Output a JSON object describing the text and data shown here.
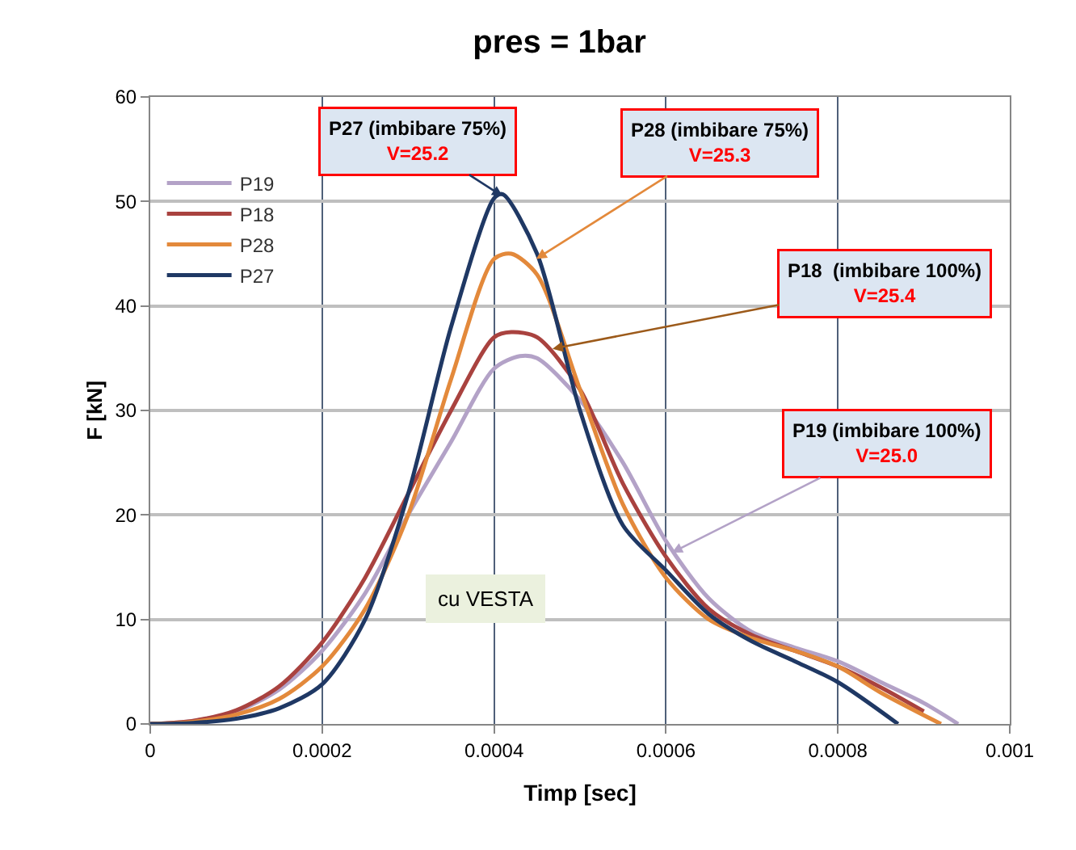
{
  "chart_data": {
    "type": "line",
    "title": "pres = 1bar",
    "xlabel": "Timp [sec]",
    "ylabel": "F [kN]",
    "xlim": [
      0,
      0.001
    ],
    "xticks": [
      0,
      0.0002,
      0.0004,
      0.0006,
      0.0008,
      0.001
    ],
    "ylim": [
      0,
      60
    ],
    "yticks": [
      0,
      10,
      20,
      30,
      40,
      50,
      60
    ],
    "grid": true,
    "legend": "top left",
    "marker": "none",
    "line_style": "solid",
    "series": [
      {
        "name": "P19",
        "color": "#b3a2c7",
        "x": [
          0,
          5e-05,
          0.0001,
          0.00015,
          0.0002,
          0.00025,
          0.0003,
          0.00035,
          0.0004,
          0.00043,
          0.00045,
          0.0005,
          0.00055,
          0.0006,
          0.00065,
          0.0007,
          0.00075,
          0.0008,
          0.00085,
          0.0009,
          0.00094
        ],
        "values": [
          0,
          0.3,
          1.2,
          3.3,
          7,
          12.5,
          20,
          27,
          34,
          35.2,
          35,
          31,
          25,
          17.5,
          12,
          8.8,
          7.3,
          6,
          4,
          2,
          0
        ]
      },
      {
        "name": "P18",
        "color": "#a9423f",
        "x": [
          0,
          5e-05,
          0.0001,
          0.00015,
          0.0002,
          0.00025,
          0.0003,
          0.00035,
          0.0004,
          0.00042,
          0.00045,
          0.0005,
          0.00055,
          0.0006,
          0.00065,
          0.0007,
          0.00075,
          0.0008,
          0.00085,
          0.0009
        ],
        "values": [
          0,
          0.3,
          1.3,
          3.6,
          7.8,
          14,
          22,
          30,
          37,
          37.5,
          37,
          32,
          23,
          16,
          11,
          8.5,
          7,
          5.5,
          3.5,
          1.2
        ]
      },
      {
        "name": "P28",
        "color": "#e3893b",
        "x": [
          0,
          5e-05,
          0.0001,
          0.00015,
          0.0002,
          0.00025,
          0.0003,
          0.00035,
          0.0004,
          0.00042,
          0.00045,
          0.0005,
          0.00055,
          0.0006,
          0.00065,
          0.0007,
          0.00075,
          0.0008,
          0.00085,
          0.00092
        ],
        "values": [
          0,
          0.2,
          0.9,
          2.4,
          5.5,
          11,
          20,
          33,
          44.5,
          45,
          43,
          32,
          21,
          14,
          10,
          8.2,
          7,
          5.5,
          3,
          0
        ]
      },
      {
        "name": "P27",
        "color": "#1f3864",
        "x": [
          0,
          5e-05,
          0.0001,
          0.00015,
          0.0002,
          0.00025,
          0.0003,
          0.00035,
          0.0004,
          0.00041,
          0.00045,
          0.0005,
          0.00055,
          0.0006,
          0.00065,
          0.0007,
          0.00075,
          0.0008,
          0.00087
        ],
        "values": [
          0,
          0.1,
          0.5,
          1.5,
          3.8,
          10,
          22,
          38,
          50.3,
          50.7,
          45,
          30,
          19,
          14.7,
          10.5,
          7.9,
          6,
          4,
          0
        ]
      }
    ],
    "annotations": [
      {
        "text": "P27 (imbibare 75%)\nV=25.2",
        "x": 0.00041,
        "y": 50.5
      },
      {
        "text": "P28 (imbibare 75%)\nV=25.3",
        "x": 0.000449,
        "y": 44.5
      },
      {
        "text": "P18  (imbibare 100%)\nV=25.4",
        "x": 0.000468,
        "y": 35.9
      },
      {
        "text": "P19 (imbibare 100%)\nV=25.0",
        "x": 0.000607,
        "y": 16.4
      },
      "cu VESTA"
    ]
  }
}
